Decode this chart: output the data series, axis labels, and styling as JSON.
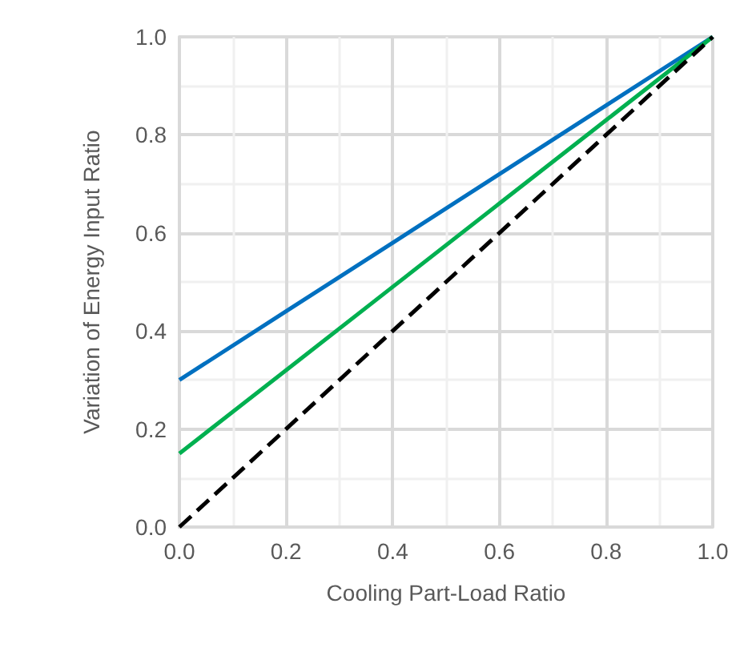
{
  "chart_data": {
    "type": "line",
    "xlabel": "Cooling Part-Load Ratio",
    "ylabel": "Variation of Energy Input Ratio",
    "x": [
      0,
      0.2,
      0.4,
      0.6,
      0.8,
      1.0
    ],
    "series": [
      {
        "color": "#0070c0",
        "values": [
          0.3,
          0.44,
          0.58,
          0.72,
          0.86,
          1.0
        ]
      },
      {
        "color": "#00b050",
        "values": [
          0.15,
          0.32,
          0.49,
          0.66,
          0.83,
          1.0
        ]
      },
      {
        "color": "#000000",
        "values": [
          0,
          0.2,
          0.4,
          0.6,
          0.8,
          1.0
        ],
        "line_style": "dashed"
      }
    ],
    "xlim": [
      0,
      1
    ],
    "ylim": [
      0,
      1
    ],
    "xticks": [
      {
        "value": 0,
        "label": "0.0"
      },
      0.2,
      0.4,
      0.6,
      0.8,
      {
        "value": 1,
        "label": "1.0"
      }
    ],
    "yticks": [
      {
        "value": 0,
        "label": "0.0"
      },
      0.2,
      0.4,
      0.6,
      0.8,
      {
        "value": 1,
        "label": "1.0"
      }
    ],
    "grid": true,
    "marker": "none",
    "line_style": "solid"
  }
}
